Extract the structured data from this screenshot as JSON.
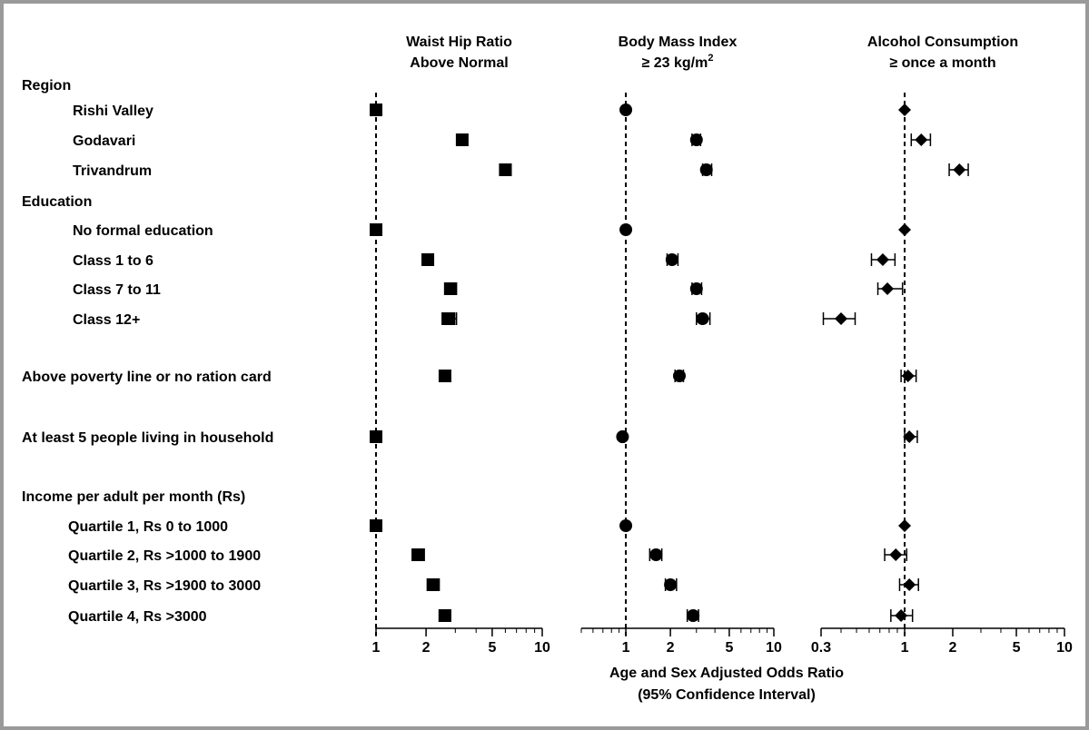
{
  "chart_data": {
    "type": "forest",
    "xlabel": [
      "Age and Sex Adjusted Odds Ratio",
      "(95% Confidence Interval)"
    ],
    "scale": "log",
    "reference_line": 1,
    "row_labels": [
      {
        "label": "Region",
        "kind": "header"
      },
      {
        "label": "Rishi Valley",
        "kind": "item"
      },
      {
        "label": "Godavari",
        "kind": "item"
      },
      {
        "label": "Trivandrum",
        "kind": "item"
      },
      {
        "label": "Education",
        "kind": "header"
      },
      {
        "label": "No formal education",
        "kind": "item"
      },
      {
        "label": "Class 1 to 6",
        "kind": "item"
      },
      {
        "label": "Class 7 to 11",
        "kind": "item"
      },
      {
        "label": "Class 12+",
        "kind": "item"
      },
      {
        "label": "Above poverty line or no ration card",
        "kind": "single"
      },
      {
        "label": "At least 5 people living in household",
        "kind": "single"
      },
      {
        "label": "Income per adult per month (Rs)",
        "kind": "header"
      },
      {
        "label": "Quartile 1, Rs 0 to 1000",
        "kind": "item2"
      },
      {
        "label": "Quartile 2, Rs >1000 to 1900",
        "kind": "item2"
      },
      {
        "label": "Quartile 3, Rs >1900 to 3000",
        "kind": "item2"
      },
      {
        "label": "Quartile 4, Rs >3000",
        "kind": "item2"
      }
    ],
    "panels": [
      {
        "title_lines": [
          "Waist Hip Ratio",
          "Above Normal"
        ],
        "marker": "square",
        "xlim": [
          1,
          10
        ],
        "ticks": [
          1,
          2,
          5,
          10
        ],
        "tick_labels": [
          "1",
          "2",
          "5",
          "10"
        ],
        "values": [
          {
            "row": "Rishi Valley",
            "or": 1.0,
            "lo": 1.0,
            "hi": 1.0
          },
          {
            "row": "Godavari",
            "or": 3.3,
            "lo": 3.1,
            "hi": 3.5
          },
          {
            "row": "Trivandrum",
            "or": 6.0,
            "lo": 5.6,
            "hi": 6.5
          },
          {
            "row": "No formal education",
            "or": 1.0,
            "lo": 1.0,
            "hi": 1.0
          },
          {
            "row": "Class 1 to 6",
            "or": 2.05,
            "lo": 1.9,
            "hi": 2.2
          },
          {
            "row": "Class 7 to 11",
            "or": 2.8,
            "lo": 2.6,
            "hi": 3.05
          },
          {
            "row": "Class 12+",
            "or": 2.75,
            "lo": 2.5,
            "hi": 3.05
          },
          {
            "row": "Above poverty line or no ration card",
            "or": 2.6,
            "lo": 2.45,
            "hi": 2.75
          },
          {
            "row": "At least 5 people living in household",
            "or": 1.0,
            "lo": 1.0,
            "hi": 1.0
          },
          {
            "row": "Quartile 1, Rs 0 to 1000",
            "or": 1.0,
            "lo": 1.0,
            "hi": 1.0
          },
          {
            "row": "Quartile 2, Rs >1000 to 1900",
            "or": 1.8,
            "lo": 1.65,
            "hi": 1.95
          },
          {
            "row": "Quartile 3, Rs >1900 to 3000",
            "or": 2.2,
            "lo": 2.05,
            "hi": 2.4
          },
          {
            "row": "Quartile 4, Rs >3000",
            "or": 2.6,
            "lo": 2.4,
            "hi": 2.8
          }
        ]
      },
      {
        "title_lines": [
          "Body Mass Index",
          "≥ 23 kg/m2"
        ],
        "marker": "circle",
        "xlim": [
          0.5,
          10
        ],
        "ticks": [
          1,
          2,
          5,
          10
        ],
        "tick_labels": [
          "1",
          "2",
          "5",
          "10"
        ],
        "values": [
          {
            "row": "Rishi Valley",
            "or": 1.0,
            "lo": 1.0,
            "hi": 1.0
          },
          {
            "row": "Godavari",
            "or": 3.0,
            "lo": 2.8,
            "hi": 3.2
          },
          {
            "row": "Trivandrum",
            "or": 3.5,
            "lo": 3.3,
            "hi": 3.8
          },
          {
            "row": "No formal education",
            "or": 1.0,
            "lo": 1.0,
            "hi": 1.0
          },
          {
            "row": "Class 1 to 6",
            "or": 2.05,
            "lo": 1.9,
            "hi": 2.25
          },
          {
            "row": "Class 7 to 11",
            "or": 3.0,
            "lo": 2.8,
            "hi": 3.25
          },
          {
            "row": "Class 12+",
            "or": 3.3,
            "lo": 3.0,
            "hi": 3.7
          },
          {
            "row": "Above poverty line or no ration card",
            "or": 2.3,
            "lo": 2.15,
            "hi": 2.45
          },
          {
            "row": "At least 5 people living in household",
            "or": 0.95,
            "lo": 0.93,
            "hi": 0.97
          },
          {
            "row": "Quartile 1, Rs 0 to 1000",
            "or": 1.0,
            "lo": 1.0,
            "hi": 1.0
          },
          {
            "row": "Quartile 2, Rs >1000 to 1900",
            "or": 1.6,
            "lo": 1.45,
            "hi": 1.75
          },
          {
            "row": "Quartile 3, Rs >1900 to 3000",
            "or": 2.0,
            "lo": 1.85,
            "hi": 2.2
          },
          {
            "row": "Quartile 4, Rs >3000",
            "or": 2.85,
            "lo": 2.6,
            "hi": 3.1
          }
        ]
      },
      {
        "title_lines": [
          "Alcohol Consumption",
          "≥ once a month"
        ],
        "marker": "diamond",
        "xlim": [
          0.3,
          10
        ],
        "ticks": [
          0.3,
          1,
          2,
          5,
          10
        ],
        "tick_labels": [
          "0.3",
          "1",
          "2",
          "5",
          "10"
        ],
        "values": [
          {
            "row": "Rishi Valley",
            "or": 1.0,
            "lo": 1.0,
            "hi": 1.0
          },
          {
            "row": "Godavari",
            "or": 1.27,
            "lo": 1.1,
            "hi": 1.45
          },
          {
            "row": "Trivandrum",
            "or": 2.2,
            "lo": 1.9,
            "hi": 2.5
          },
          {
            "row": "No formal education",
            "or": 1.0,
            "lo": 1.0,
            "hi": 1.0
          },
          {
            "row": "Class 1 to 6",
            "or": 0.73,
            "lo": 0.62,
            "hi": 0.87
          },
          {
            "row": "Class 7 to 11",
            "or": 0.78,
            "lo": 0.68,
            "hi": 0.97
          },
          {
            "row": "Class 12+",
            "or": 0.4,
            "lo": 0.31,
            "hi": 0.49
          },
          {
            "row": "Above poverty line or no ration card",
            "or": 1.05,
            "lo": 0.95,
            "hi": 1.18
          },
          {
            "row": "At least 5 people living in household",
            "or": 1.07,
            "lo": 1.0,
            "hi": 1.2
          },
          {
            "row": "Quartile 1, Rs 0 to 1000",
            "or": 1.0,
            "lo": 1.0,
            "hi": 1.0
          },
          {
            "row": "Quartile 2, Rs >1000 to 1900",
            "or": 0.88,
            "lo": 0.75,
            "hi": 1.03
          },
          {
            "row": "Quartile 3, Rs >1900 to 3000",
            "or": 1.07,
            "lo": 0.93,
            "hi": 1.22
          },
          {
            "row": "Quartile 4, Rs >3000",
            "or": 0.95,
            "lo": 0.82,
            "hi": 1.12
          }
        ]
      }
    ]
  }
}
